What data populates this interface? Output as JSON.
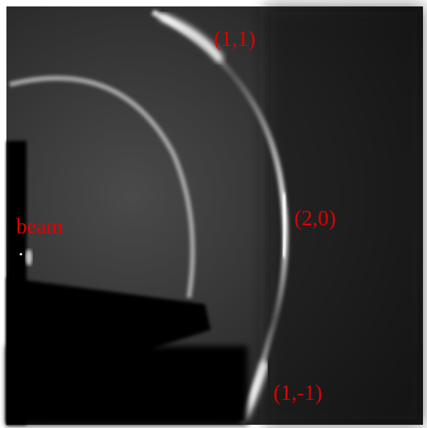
{
  "labels": {
    "top": "(1,1)",
    "right": "(2,0)",
    "beam": "beam",
    "bottom": "(1,-1)"
  }
}
